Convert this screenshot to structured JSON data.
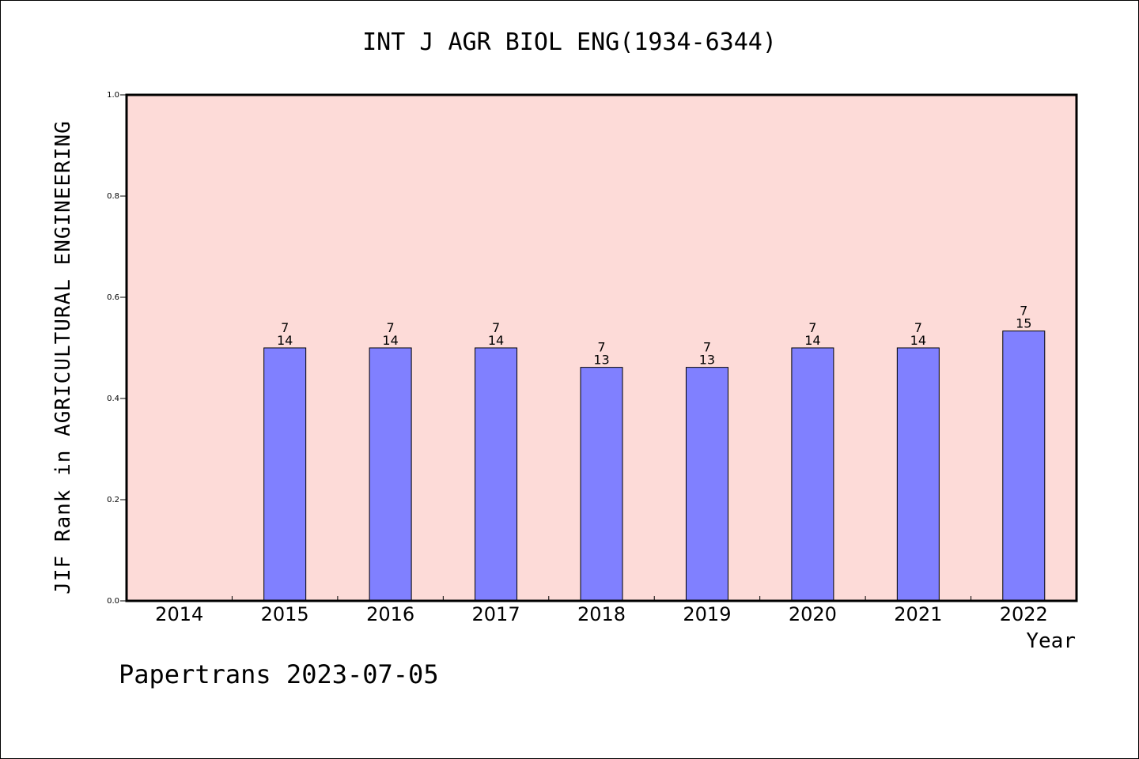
{
  "chart_data": {
    "type": "bar",
    "title": "INT J AGR BIOL ENG(1934-6344)",
    "xlabel": "Year",
    "ylabel": "JIF Rank in AGRICULTURAL ENGINEERING",
    "categories": [
      "2014",
      "2015",
      "2016",
      "2017",
      "2018",
      "2019",
      "2020",
      "2021",
      "2022"
    ],
    "values": [
      null,
      0.5,
      0.5,
      0.5,
      0.4615,
      0.4615,
      0.5,
      0.5,
      0.5333
    ],
    "rank": [
      null,
      7,
      7,
      7,
      7,
      7,
      7,
      7,
      7
    ],
    "total": [
      null,
      14,
      14,
      14,
      13,
      13,
      14,
      14,
      15
    ],
    "ylim": [
      0,
      1.0
    ],
    "yticks": [
      "0.0",
      "0.2",
      "0.4",
      "0.6",
      "0.8",
      "1.0"
    ],
    "grid": false,
    "colors": {
      "plot_bg": "#fddbd8",
      "bar": "#8080ff",
      "bar_edge": "#000000"
    }
  },
  "footer": {
    "credit": "Papertrans 2023-07-05"
  }
}
